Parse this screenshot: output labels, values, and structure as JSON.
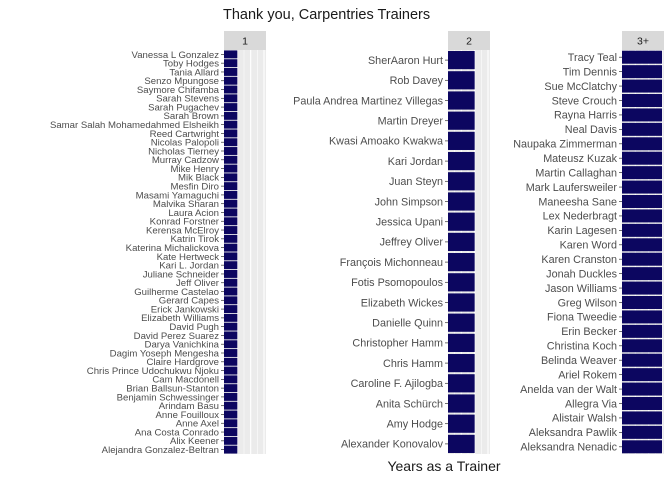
{
  "chart_data": {
    "type": "bar",
    "title": "Thank you, Carpentries Trainers",
    "xlabel": "Years as a Trainer",
    "ylabel": "",
    "bar_color": "#0c0660",
    "panel_background": "#ebebeb",
    "strip_background": "#d9d9d9",
    "grid": true,
    "facets": [
      {
        "label": "1",
        "value": 1,
        "names": [
          "Vanessa L Gonzalez",
          "Toby Hodges",
          "Tania Allard",
          "Senzo Mpungose",
          "Saymore Chifamba",
          "Sarah Stevens",
          "Sarah Pugachev",
          "Sarah Brown",
          "Samar Salah Mohamedahmed Elsheikh",
          "Reed Cartwright",
          "Nicolas Palopoli",
          "Nicholas Tierney",
          "Murray Cadzow",
          "Mike Henry",
          "Mik Black",
          "Mesfin Diro",
          "Masami Yamaguchi",
          "Malvika Sharan",
          "Laura Acion",
          "Konrad Forstner",
          "Kerensa McElroy",
          "Katrin Tirok",
          "Katerina Michalickova",
          "Kate Hertweck",
          "Kari L. Jordan",
          "Juliane Schneider",
          "Jeff Oliver",
          "Guilherme Castelao",
          "Gerard Capes",
          "Erick Jankowski",
          "Elizabeth Williams",
          "David Pugh",
          "David Perez Suarez",
          "Darya Vanichkina",
          "Dagim Yoseph Mengesha",
          "Claire Hardgrove",
          "Chris Prince Udochukwu Njoku",
          "Cam Macdonell",
          "Brian Ballsun-Stanton",
          "Benjamin Schwessinger",
          "Arindam Basu",
          "Anne Fouilloux",
          "Anne Axel",
          "Ana Costa Conrado",
          "Alix Keener",
          "Alejandra Gonzalez-Beltran"
        ]
      },
      {
        "label": "2",
        "value": 2,
        "names": [
          "SherAaron Hurt",
          "Rob Davey",
          "Paula Andrea Martinez Villegas",
          "Martin Dreyer",
          "Kwasi Amoako Kwakwa",
          "Kari Jordan",
          "Juan Steyn",
          "John Simpson",
          "Jessica Upani",
          "Jeffrey Oliver",
          "François Michonneau",
          "Fotis Psomopoulos",
          "Elizabeth Wickes",
          "Danielle Quinn",
          "Christopher Hamm",
          "Chris Hamm",
          "Caroline F. Ajilogba",
          "Anita Schürch",
          "Amy Hodge",
          "Alexander Konovalov"
        ]
      },
      {
        "label": "3+",
        "value": 3,
        "names": [
          "Tracy Teal",
          "Tim Dennis",
          "Sue McClatchy",
          "Steve Crouch",
          "Rayna Harris",
          "Neal Davis",
          "Naupaka Zimmerman",
          "Mateusz Kuzak",
          "Martin Callaghan",
          "Mark Laufersweiler",
          "Maneesha Sane",
          "Lex Nederbragt",
          "Karin Lagesen",
          "Karen Word",
          "Karen Cranston",
          "Jonah Duckles",
          "Jason Williams",
          "Greg Wilson",
          "Fiona Tweedie",
          "Erin Becker",
          "Christina Koch",
          "Belinda Weaver",
          "Ariel Rokem",
          "Anelda van der Walt",
          "Allegra Via",
          "Alistair Walsh",
          "Aleksandra Pawlik",
          "Aleksandra Nenadic"
        ]
      }
    ]
  }
}
